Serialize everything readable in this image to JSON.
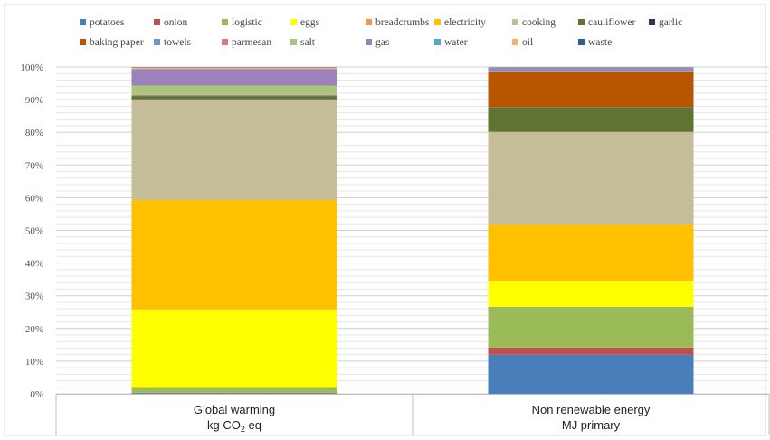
{
  "chart_data": {
    "type": "bar",
    "stacked": true,
    "percent": true,
    "categories": [
      {
        "line1": "Global warming",
        "line2_prefix": "kg CO",
        "line2_sub": "2",
        "line2_suffix": " eq"
      },
      {
        "line1": "Non renewable energy",
        "line2_prefix": "MJ primary",
        "line2_sub": "",
        "line2_suffix": ""
      }
    ],
    "y_ticks": [
      "0%",
      "10%",
      "20%",
      "30%",
      "40%",
      "50%",
      "60%",
      "70%",
      "80%",
      "90%",
      "100%"
    ],
    "ylim": [
      0,
      100
    ],
    "grid": true,
    "legend_position": "top",
    "series": [
      {
        "name": "potatoes",
        "color": "#4a7ebb",
        "values": [
          0.2,
          12.0
        ]
      },
      {
        "name": "onion",
        "color": "#c0504d",
        "values": [
          0.1,
          2.2
        ]
      },
      {
        "name": "logistic",
        "color": "#9bbb59",
        "values": [
          1.5,
          12.5
        ]
      },
      {
        "name": "eggs",
        "color": "#ffff00",
        "values": [
          24.0,
          8.0
        ]
      },
      {
        "name": "breadcrumbs",
        "color": "#f79646",
        "values": [
          0.1,
          0.1
        ]
      },
      {
        "name": "electricity",
        "color": "#ffc000",
        "values": [
          33.3,
          17.2
        ]
      },
      {
        "name": "cooking",
        "color": "#c4bd97",
        "values": [
          30.8,
          28.3
        ]
      },
      {
        "name": "cauliflower",
        "color": "#5e7430",
        "values": [
          1.0,
          7.5
        ]
      },
      {
        "name": "garlic",
        "color": "#3d3051",
        "values": [
          0.1,
          0.1
        ]
      },
      {
        "name": "baking paper",
        "color": "#b85600",
        "values": [
          0.1,
          10.7
        ]
      },
      {
        "name": "towels",
        "color": "#6e95c8",
        "values": [
          0.1,
          0.1
        ]
      },
      {
        "name": "parmesan",
        "color": "#d97b7b",
        "values": [
          0.1,
          0.1
        ]
      },
      {
        "name": "salt",
        "color": "#a9c77a",
        "values": [
          2.8,
          0.1
        ]
      },
      {
        "name": "gas",
        "color": "#9b82bb",
        "values": [
          5.0,
          1.0
        ]
      },
      {
        "name": "water",
        "color": "#4bacc6",
        "values": [
          0.1,
          0.1
        ]
      },
      {
        "name": "oil",
        "color": "#f5b06e",
        "values": [
          0.5,
          0.1
        ]
      },
      {
        "name": "waste",
        "color": "#2e5c9a",
        "values": [
          0.1,
          0.1
        ]
      }
    ]
  }
}
